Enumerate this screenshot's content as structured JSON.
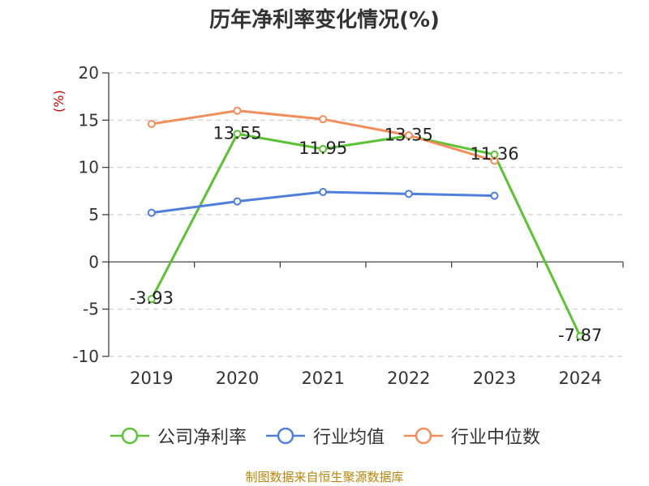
{
  "chart_data": {
    "type": "line",
    "title": "历年净利率变化情况(%)",
    "ylabel": "(%)",
    "categories": [
      "2019",
      "2020",
      "2021",
      "2022",
      "2023",
      "2024"
    ],
    "ylim": [
      -10,
      20
    ],
    "yticks": [
      -10,
      -5,
      0,
      5,
      10,
      15,
      20
    ],
    "grid": true,
    "legend_position": "bottom",
    "series": [
      {
        "name": "公司净利率",
        "color": "#5bc236",
        "values": [
          -3.93,
          13.55,
          11.95,
          13.35,
          11.36,
          -7.87
        ],
        "labels": [
          "-3.93",
          "13.55",
          "11.95",
          "13.35",
          "11.36",
          "-7.87"
        ]
      },
      {
        "name": "行业均值",
        "color": "#4f7fdb",
        "values": [
          5.2,
          6.4,
          7.4,
          7.2,
          7.0,
          null
        ]
      },
      {
        "name": "行业中位数",
        "color": "#f28e5c",
        "values": [
          14.6,
          16.0,
          15.1,
          13.4,
          10.7,
          null
        ]
      }
    ]
  },
  "source_text": "制图数据来自恒生聚源数据库"
}
